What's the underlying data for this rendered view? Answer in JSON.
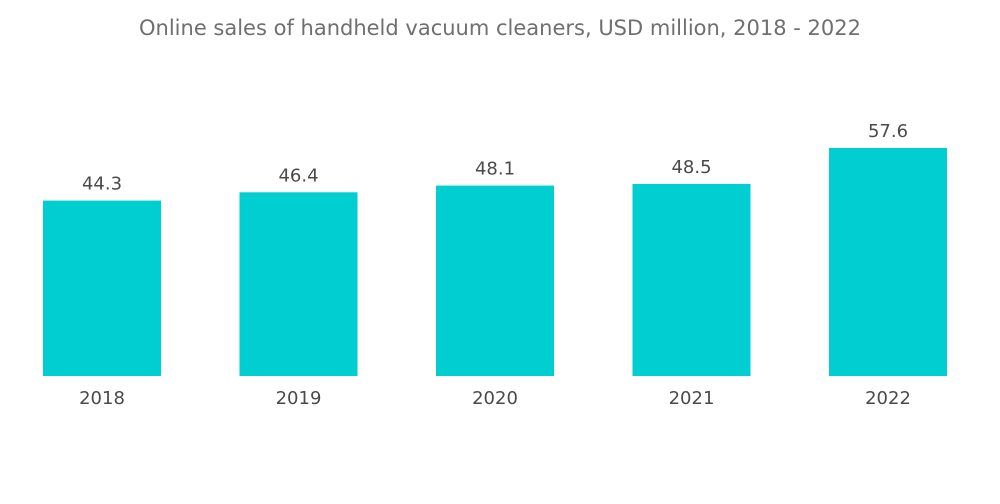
{
  "chart_data": {
    "type": "bar",
    "title": "Online sales of handheld vacuum cleaners, USD million, 2018 - 2022",
    "categories": [
      "2018",
      "2019",
      "2020",
      "2021",
      "2022"
    ],
    "values": [
      44.3,
      46.4,
      48.1,
      48.5,
      57.6
    ],
    "value_labels": [
      "44.3",
      "46.4",
      "48.1",
      "48.5",
      "57.6"
    ],
    "xlabel": "",
    "ylabel": "",
    "ylim": [
      0,
      60
    ],
    "grid": false,
    "legend": "none",
    "bar_color": "#00CED1"
  }
}
